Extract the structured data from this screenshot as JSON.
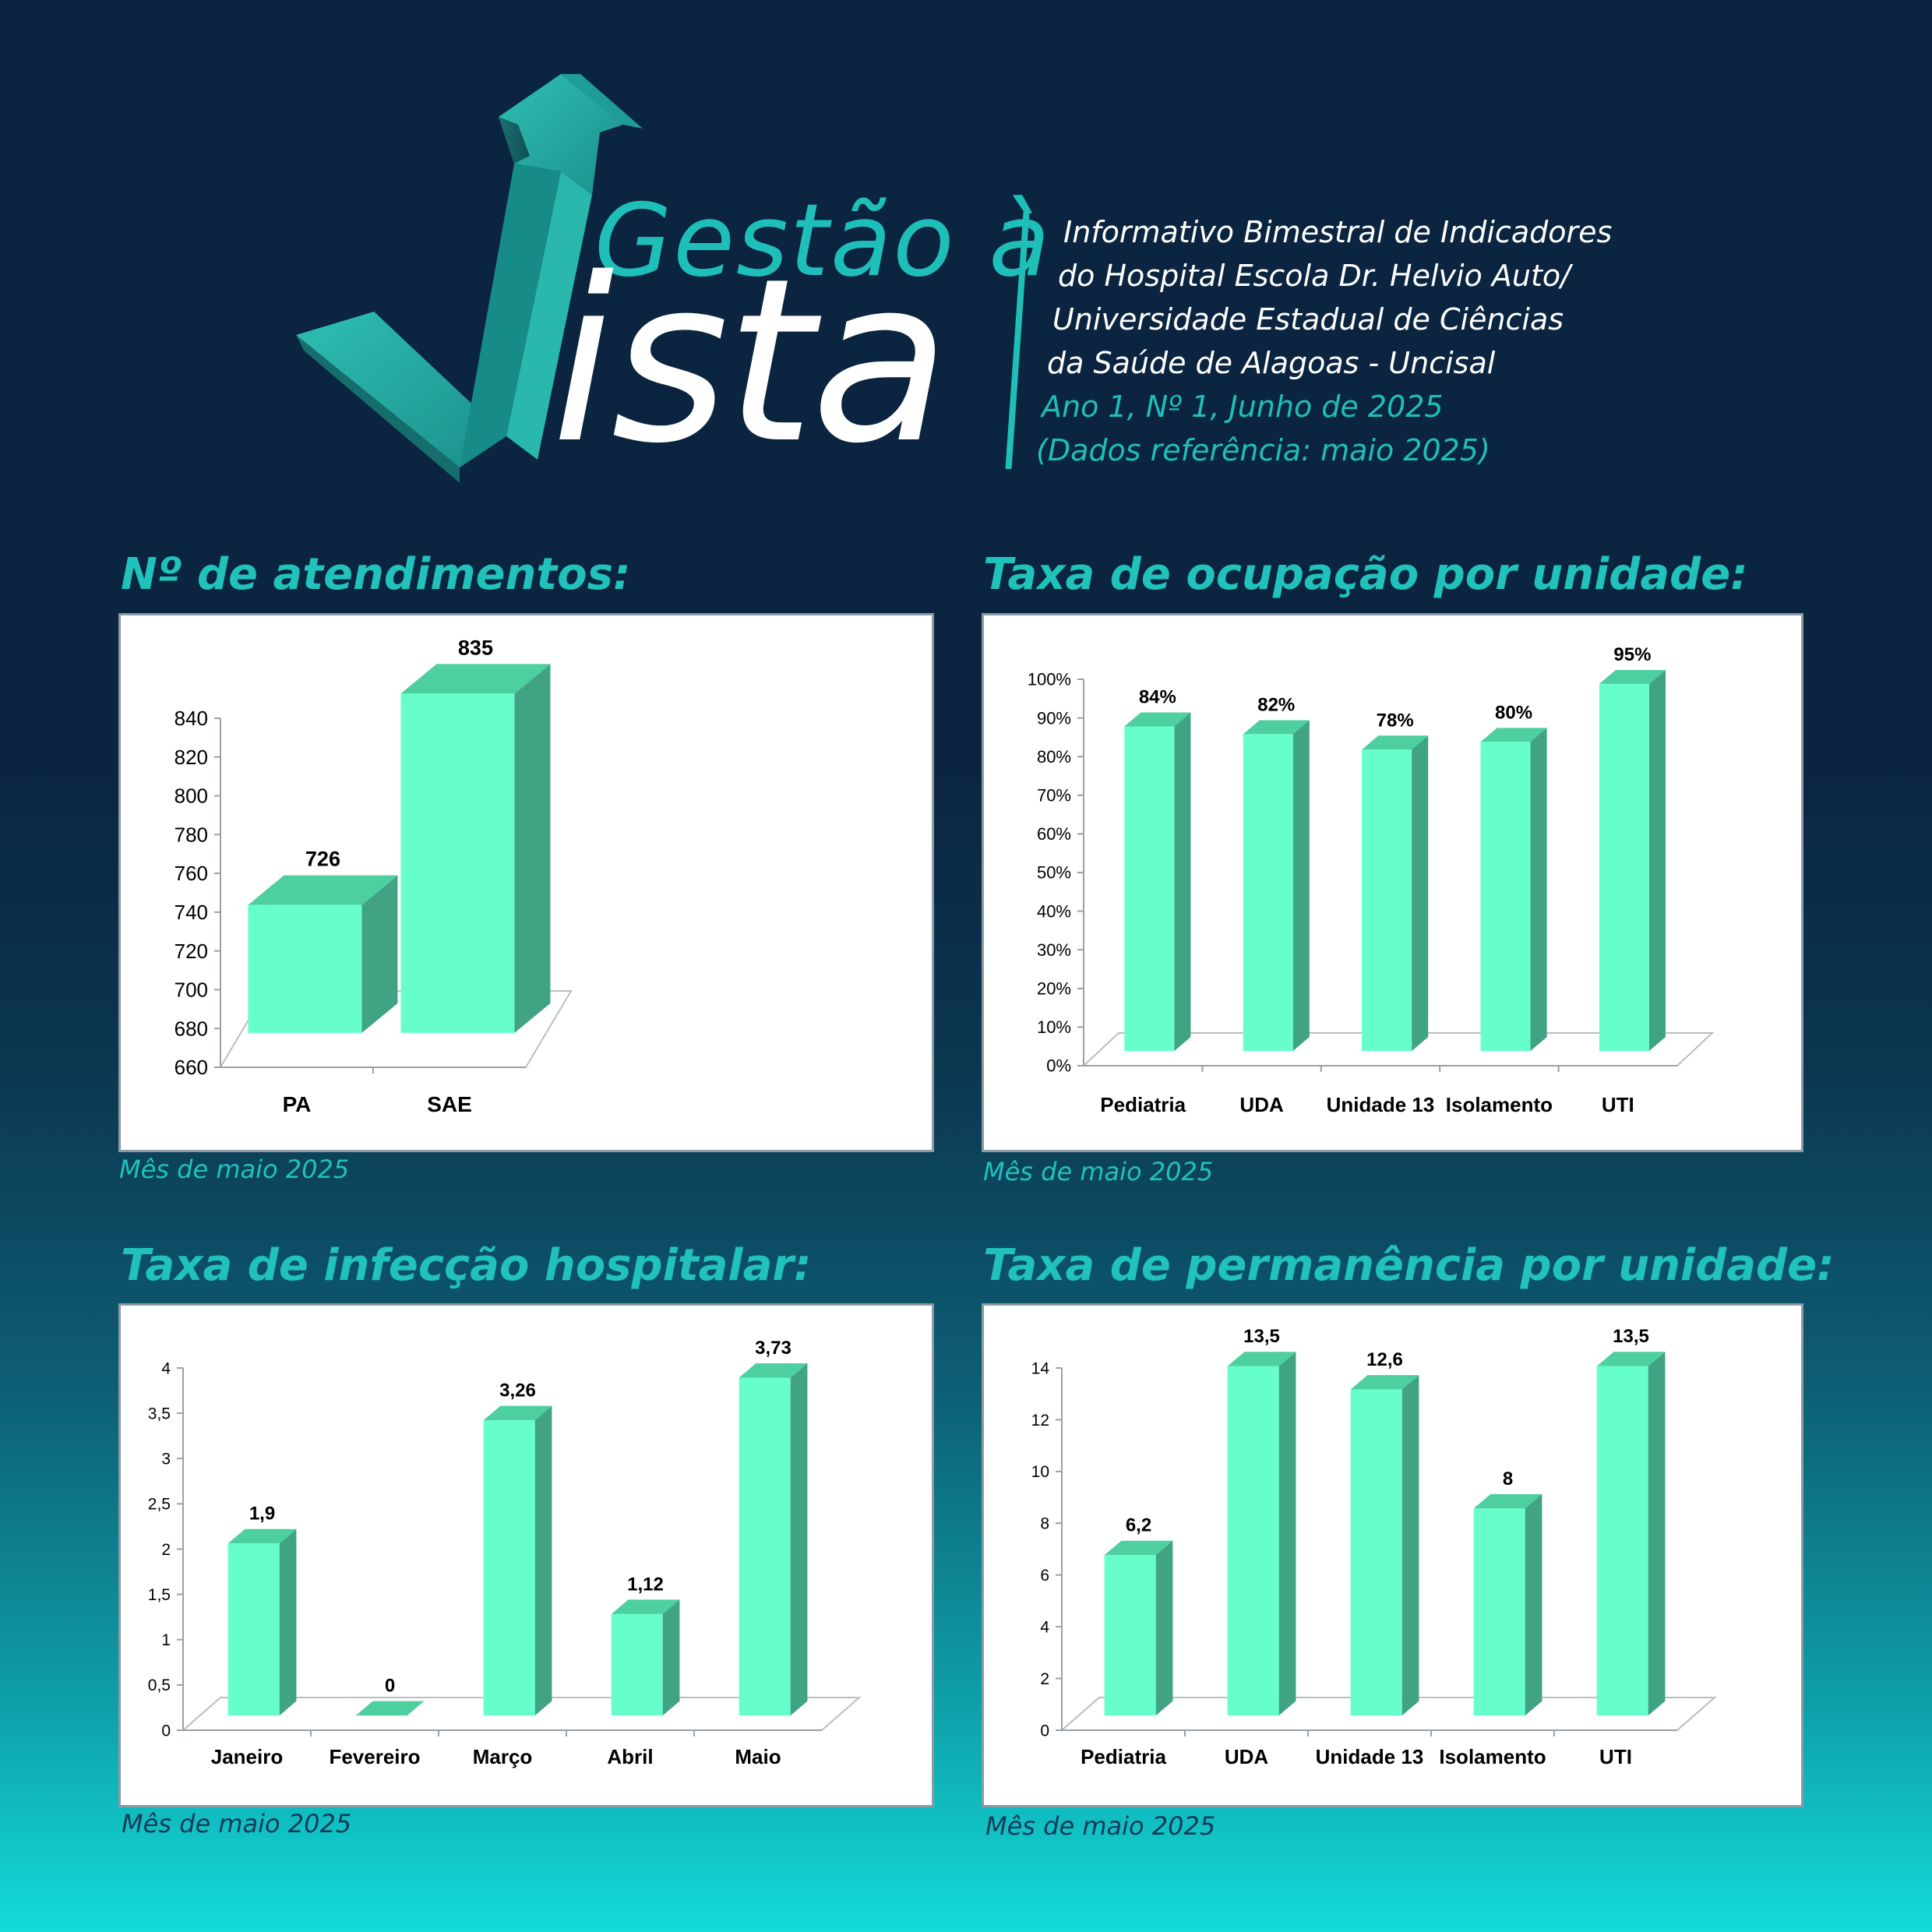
{
  "header": {
    "brand_line1": "Gestão à",
    "brand_line2": "ista",
    "info_lines": [
      "Informativo Bimestral de Indicadores",
      "do Hospital Escola Dr. Helvio Auto/",
      "Universidade Estadual de Ciências",
      "da Saúde de Alagoas - Uncisal"
    ],
    "edition": "Ano 1, Nº 1, Junho de 2025",
    "reference": "(Dados referência: maio 2025)",
    "colors": {
      "accent": "#20c2bb",
      "bar_front": "#66ffcc",
      "bar_side": "#3fa384",
      "bar_top": "#4ecf9f"
    }
  },
  "sections": [
    {
      "title": "Nº de atendimentos:",
      "caption": "Mês de maio 2025"
    },
    {
      "title": "Taxa de ocupação por unidade:",
      "caption": "Mês de maio 2025"
    },
    {
      "title": "Taxa de infecção hospitalar:",
      "caption": "Mês de maio 2025"
    },
    {
      "title": "Taxa de permanência por unidade:",
      "caption": "Mês de maio 2025"
    }
  ],
  "chart_data": [
    {
      "type": "bar",
      "categories": [
        "PA",
        "SAE"
      ],
      "values": [
        726,
        835
      ],
      "data_labels": [
        "726",
        "835"
      ],
      "ylim": [
        660,
        840
      ],
      "yticks": [
        "840",
        "820",
        "800",
        "780",
        "760",
        "740",
        "720",
        "700",
        "680",
        "660"
      ],
      "grid": false,
      "legend": "none",
      "three_d": true
    },
    {
      "type": "bar",
      "categories": [
        "Pediatria",
        "UDA",
        "Unidade 13",
        "Isolamento",
        "UTI"
      ],
      "values": [
        84,
        82,
        78,
        80,
        95
      ],
      "data_labels": [
        "84%",
        "82%",
        "78%",
        "80%",
        "95%"
      ],
      "ylim": [
        0,
        100
      ],
      "yticks": [
        "100%",
        "90%",
        "80%",
        "70%",
        "60%",
        "50%",
        "40%",
        "30%",
        "20%",
        "10%",
        "0%"
      ],
      "grid": false,
      "legend": "none",
      "three_d": true
    },
    {
      "type": "bar",
      "categories": [
        "Janeiro",
        "Fevereiro",
        "Março",
        "Abril",
        "Maio"
      ],
      "values": [
        1.9,
        0,
        3.26,
        1.12,
        3.73
      ],
      "data_labels": [
        "1,9",
        "0",
        "3,26",
        "1,12",
        "3,73"
      ],
      "ylim": [
        0,
        4
      ],
      "yticks": [
        "4",
        "3,5",
        "3",
        "2,5",
        "2",
        "1,5",
        "1",
        "0,5",
        "0"
      ],
      "grid": false,
      "legend": "none",
      "three_d": true
    },
    {
      "type": "bar",
      "categories": [
        "Pediatria",
        "UDA",
        "Unidade 13",
        "Isolamento",
        "UTI"
      ],
      "values": [
        6.2,
        13.5,
        12.6,
        8,
        13.5
      ],
      "data_labels": [
        "6,2",
        "13,5",
        "12,6",
        "8",
        "13,5"
      ],
      "ylim": [
        0,
        14
      ],
      "yticks": [
        "14",
        "12",
        "10",
        "8",
        "6",
        "4",
        "2",
        "0"
      ],
      "grid": false,
      "legend": "none",
      "three_d": true
    }
  ]
}
